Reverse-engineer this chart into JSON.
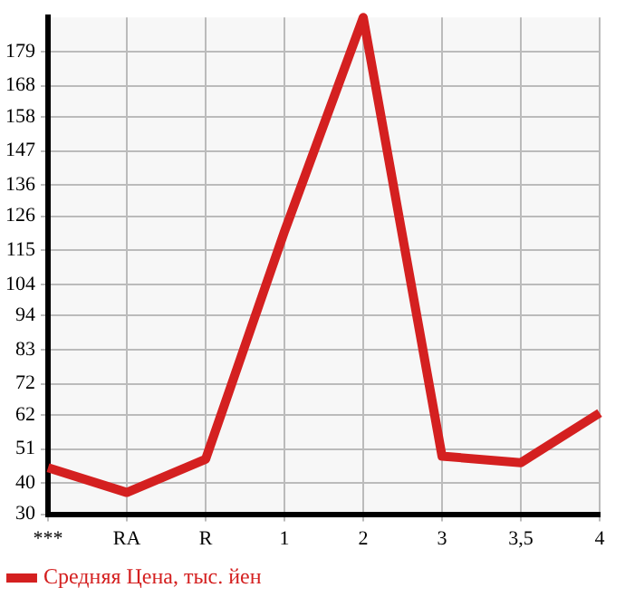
{
  "chart_data": {
    "type": "line",
    "categories": [
      "***",
      "RA",
      "R",
      "1",
      "2",
      "3",
      "3,5",
      "4"
    ],
    "series": [
      {
        "name": "Средняя Цена, тыс. йен",
        "color": "#d42020",
        "values": [
          45,
          37,
          47.7,
          121,
          190,
          48.7,
          46.6,
          62.6
        ]
      }
    ],
    "ylim": [
      30,
      190
    ],
    "yticks": [
      30,
      40,
      51,
      62,
      72,
      83,
      94,
      104,
      115,
      126,
      136,
      147,
      158,
      168,
      179
    ],
    "grid": true,
    "legend": "bottom left",
    "marker": "none",
    "line_style": "solid"
  }
}
